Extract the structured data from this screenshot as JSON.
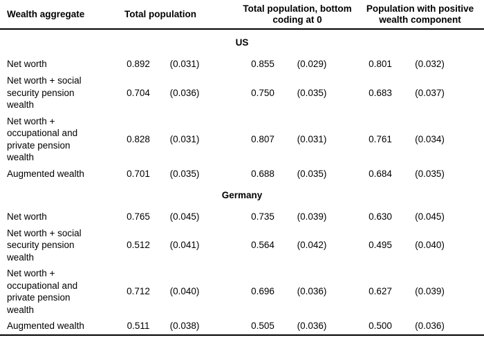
{
  "table": {
    "header": {
      "label_column": "Wealth aggregate",
      "groups": [
        {
          "label": "Total population"
        },
        {
          "label": "Total population, bottom\ncoding at 0"
        },
        {
          "label": "Population with positive\nwealth component"
        }
      ]
    },
    "sections": [
      {
        "name": "US",
        "rows": [
          {
            "label": "Net worth",
            "values": [
              "0.892",
              "(0.031)",
              "0.855",
              "(0.029)",
              "0.801",
              "(0.032)"
            ]
          },
          {
            "label": "Net worth + social\nsecurity pension\nwealth",
            "values": [
              "0.704",
              "(0.036)",
              "0.750",
              "(0.035)",
              "0.683",
              "(0.037)"
            ]
          },
          {
            "label": "Net worth +\noccupational and\nprivate pension\nwealth",
            "values": [
              "0.828",
              "(0.031)",
              "0.807",
              "(0.031)",
              "0.761",
              "(0.034)"
            ]
          },
          {
            "label": "Augmented wealth",
            "values": [
              "0.701",
              "(0.035)",
              "0.688",
              "(0.035)",
              "0.684",
              "(0.035)"
            ]
          }
        ]
      },
      {
        "name": "Germany",
        "rows": [
          {
            "label": "Net worth",
            "values": [
              "0.765",
              "(0.045)",
              "0.735",
              "(0.039)",
              "0.630",
              "(0.045)"
            ]
          },
          {
            "label": "Net worth + social\nsecurity pension\nwealth",
            "values": [
              "0.512",
              "(0.041)",
              "0.564",
              "(0.042)",
              "0.495",
              "(0.040)"
            ]
          },
          {
            "label": "Net worth +\noccupational and\nprivate pension\nwealth",
            "values": [
              "0.712",
              "(0.040)",
              "0.696",
              "(0.036)",
              "0.627",
              "(0.039)"
            ]
          },
          {
            "label": "Augmented wealth",
            "values": [
              "0.511",
              "(0.038)",
              "0.505",
              "(0.036)",
              "0.500",
              "(0.036)"
            ]
          }
        ]
      }
    ]
  }
}
